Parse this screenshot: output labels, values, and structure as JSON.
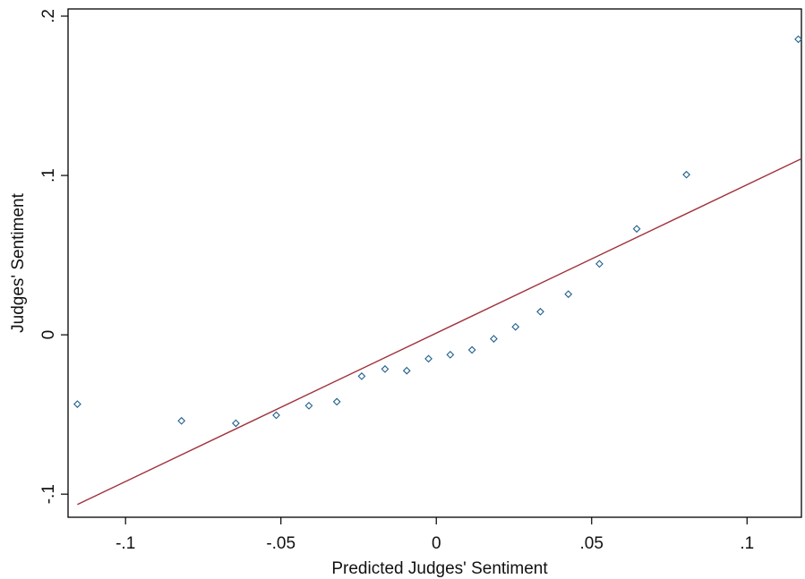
{
  "chart_data": {
    "type": "scatter",
    "title": "",
    "xlabel": "Predicted Judges' Sentiment",
    "ylabel": "Judges' Sentiment",
    "xlim": [
      -0.1185,
      0.1175
    ],
    "ylim": [
      -0.1145,
      0.2045
    ],
    "xticks": [
      {
        "value": -0.1,
        "label": "-.1"
      },
      {
        "value": -0.05,
        "label": "-.05"
      },
      {
        "value": 0,
        "label": "0"
      },
      {
        "value": 0.05,
        "label": ".05"
      },
      {
        "value": 0.1,
        "label": ".1"
      }
    ],
    "yticks": [
      {
        "value": -0.1,
        "label": "-.1"
      },
      {
        "value": 0,
        "label": "0"
      },
      {
        "value": 0.1,
        "label": ".1"
      },
      {
        "value": 0.2,
        "label": ".2"
      }
    ],
    "grid": false,
    "legend": "none",
    "series": [
      {
        "marker": "hollow-diamond",
        "color": "#1f5f8b",
        "points": [
          {
            "x": -0.1155,
            "y": -0.0435
          },
          {
            "x": -0.082,
            "y": -0.054
          },
          {
            "x": -0.0645,
            "y": -0.0555
          },
          {
            "x": -0.0515,
            "y": -0.0505
          },
          {
            "x": -0.041,
            "y": -0.0445
          },
          {
            "x": -0.032,
            "y": -0.042
          },
          {
            "x": -0.024,
            "y": -0.026
          },
          {
            "x": -0.0165,
            "y": -0.0215
          },
          {
            "x": -0.0095,
            "y": -0.0225
          },
          {
            "x": -0.0025,
            "y": -0.015
          },
          {
            "x": 0.0045,
            "y": -0.0125
          },
          {
            "x": 0.0115,
            "y": -0.0095
          },
          {
            "x": 0.0185,
            "y": -0.0025
          },
          {
            "x": 0.0255,
            "y": 0.005
          },
          {
            "x": 0.0335,
            "y": 0.0145
          },
          {
            "x": 0.0425,
            "y": 0.0255
          },
          {
            "x": 0.0525,
            "y": 0.0445
          },
          {
            "x": 0.0645,
            "y": 0.0665
          },
          {
            "x": 0.0805,
            "y": 0.1005
          },
          {
            "x": 0.1165,
            "y": 0.1855
          }
        ]
      },
      {
        "marker": "line",
        "color": "#a0303a",
        "points": [
          {
            "x": -0.1155,
            "y": -0.1065
          },
          {
            "x": 0.1175,
            "y": 0.1105
          }
        ]
      }
    ]
  }
}
